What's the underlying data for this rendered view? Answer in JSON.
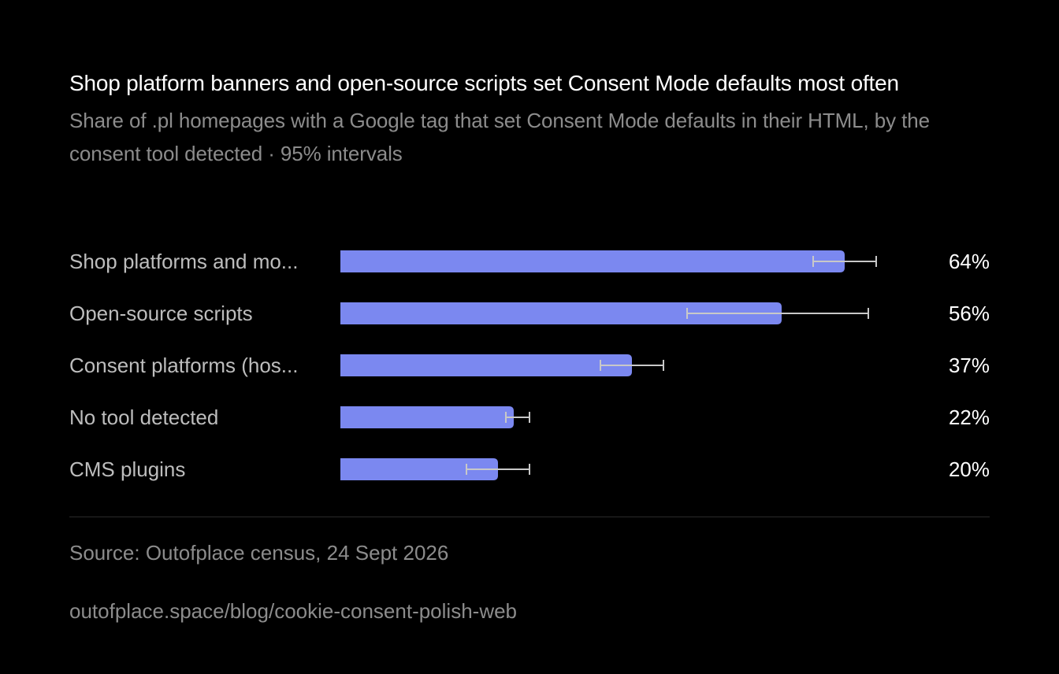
{
  "colors": {
    "background": "#000000",
    "bar": "#7b88f0",
    "error_bar": "#c8c8c8",
    "title": "#ffffff",
    "muted": "#8c8c8c"
  },
  "header": {
    "title": "Shop platform banners and open-source scripts set Consent Mode defaults most often",
    "subtitle": "Share of .pl homepages with a Google tag that set Consent Mode defaults in their HTML, by the consent tool detected · 95% intervals"
  },
  "chart_data": {
    "type": "bar",
    "orientation": "horizontal",
    "categories": [
      "Shop platforms and mo...",
      "Open-source scripts",
      "Consent platforms (hos...",
      "No tool detected",
      "CMS plugins"
    ],
    "values": [
      64,
      56,
      37,
      22,
      20
    ],
    "value_labels": [
      "64%",
      "56%",
      "37%",
      "22%",
      "20%"
    ],
    "intervals": [
      [
        60,
        68
      ],
      [
        44,
        67
      ],
      [
        33,
        41
      ],
      [
        21,
        24
      ],
      [
        16,
        24
      ]
    ],
    "unit": "%",
    "xlim": [
      0,
      84
    ],
    "grid": false,
    "legend": "none"
  },
  "footer": {
    "source": "Source: Outofplace census, 24 Sept 2026",
    "url": "outofplace.space/blog/cookie-consent-polish-web"
  }
}
